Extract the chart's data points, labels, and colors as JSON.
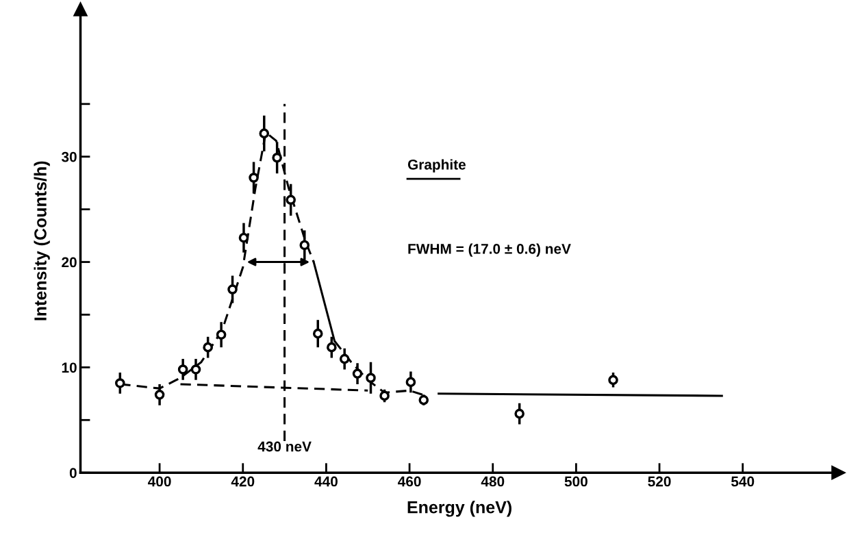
{
  "chart_data": {
    "type": "scatter",
    "xlabel": "Energy (neV)",
    "ylabel": "Intensity (Counts/h)",
    "xlim": [
      381,
      563
    ],
    "ylim": [
      0,
      44
    ],
    "xticks": [
      400,
      420,
      440,
      460,
      480,
      500,
      520,
      540
    ],
    "yticks": [
      0,
      {
        "value": 5,
        "label": null
      },
      10,
      {
        "value": 15,
        "label": null
      },
      20,
      {
        "value": 25,
        "label": null
      },
      30,
      {
        "value": 35,
        "label": null
      }
    ],
    "grid": false,
    "legend": false,
    "series": [
      {
        "type": "line",
        "line_style": "dashed",
        "color": "#000000",
        "x": [
          390.5,
          400,
          405,
          410,
          415,
          420,
          423,
          425.5,
          428,
          431,
          435,
          437
        ],
        "values": [
          8.4,
          8.0,
          9.0,
          10.5,
          13.5,
          19.5,
          27,
          32.3,
          31.5,
          27,
          22,
          20
        ]
      },
      {
        "type": "line",
        "line_style": "solid",
        "color": "#000000",
        "x": [
          437,
          442
        ],
        "values": [
          20,
          12.5
        ]
      },
      {
        "type": "line",
        "line_style": "dashed",
        "color": "#000000",
        "x": [
          442,
          446,
          450,
          454,
          460,
          464
        ],
        "values": [
          12.5,
          10.5,
          8.8,
          7.6,
          7.8,
          7.3
        ]
      },
      {
        "type": "line",
        "line_style": "solid",
        "color": "#000000",
        "x": [
          467,
          535
        ],
        "values": [
          7.5,
          7.3
        ]
      },
      {
        "type": "line",
        "line_style": "dashed",
        "color": "#000000",
        "x": [
          405,
          450
        ],
        "values": [
          8.4,
          7.8
        ]
      },
      {
        "type": "line",
        "line_style": "dashed",
        "color": "#000000",
        "x": [
          430,
          430
        ],
        "values": [
          3,
          35
        ]
      },
      {
        "marker": "circle",
        "color": "#000000",
        "x": [
          390.5,
          400,
          405.6,
          408.7,
          411.6,
          414.8,
          417.5,
          420.2,
          422.6,
          425.1,
          428.2,
          431.5,
          434.8,
          438.0,
          441.3,
          444.4,
          447.5,
          450.7,
          454.0,
          460.3,
          463.4,
          486.4,
          508.9
        ],
        "values": [
          8.5,
          7.4,
          9.8,
          9.8,
          11.9,
          13.1,
          17.4,
          22.3,
          28.0,
          32.2,
          29.9,
          25.9,
          21.6,
          13.2,
          11.9,
          10.8,
          9.4,
          9.0,
          7.3,
          8.6,
          6.9,
          5.6,
          8.8
        ],
        "errors": [
          1.0,
          1.0,
          1.0,
          1.0,
          1.0,
          1.2,
          1.3,
          1.4,
          1.5,
          1.7,
          1.5,
          1.5,
          1.4,
          1.3,
          1.0,
          1.0,
          1.0,
          1.5,
          0.6,
          1.0,
          0.5,
          1.0,
          0.7
        ]
      }
    ],
    "annotations": [
      {
        "text": "430 neV",
        "x": 430,
        "y": 3
      },
      "Graphite",
      "FWHM = (17.0 ± 0.6) neV"
    ]
  }
}
